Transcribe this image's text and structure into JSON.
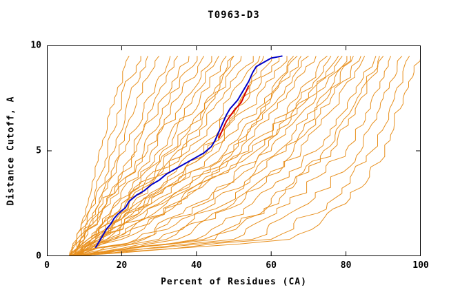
{
  "chart_data": {
    "type": "line",
    "title": "T0963-D3",
    "xlabel": "Percent of Residues (CA)",
    "ylabel": "Distance Cutoff, A",
    "xlim": [
      0,
      100
    ],
    "ylim": [
      0,
      10
    ],
    "x_tick_values": [
      0,
      20,
      40,
      60,
      80,
      100
    ],
    "x_tick_labels": [
      "0",
      "20",
      "40",
      "60",
      "80",
      "100"
    ],
    "y_tick_values": [
      0,
      5,
      10
    ],
    "y_tick_labels": [
      "0",
      "5",
      "10"
    ],
    "grid": false,
    "legend": null,
    "colors": {
      "orange": "#E8901E",
      "blue": "#0000C8",
      "red": "#D40000",
      "frame": "#000000"
    },
    "anchor_y": [
      0,
      0.8,
      2.5,
      5,
      7.5,
      9.5
    ],
    "orange_series": [
      [
        6,
        8,
        11,
        14,
        18,
        22
      ],
      [
        6,
        8,
        12,
        16,
        20,
        25
      ],
      [
        6,
        8,
        13,
        18,
        22,
        27
      ],
      [
        7,
        9,
        14,
        19,
        24,
        30
      ],
      [
        6,
        9,
        14,
        21,
        27,
        33
      ],
      [
        7,
        10,
        16,
        23,
        29,
        35
      ],
      [
        6,
        9,
        15,
        24,
        31,
        38
      ],
      [
        7,
        10,
        17,
        26,
        33,
        40
      ],
      [
        6,
        10,
        16,
        27,
        35,
        42
      ],
      [
        7,
        11,
        18,
        28,
        37,
        44
      ],
      [
        8,
        12,
        20,
        30,
        39,
        46
      ],
      [
        6,
        11,
        19,
        31,
        41,
        48
      ],
      [
        7,
        12,
        21,
        33,
        43,
        50
      ],
      [
        8,
        13,
        22,
        35,
        45,
        52
      ],
      [
        6,
        12,
        20,
        36,
        47,
        55
      ],
      [
        7,
        13,
        23,
        38,
        49,
        57
      ],
      [
        8,
        14,
        25,
        40,
        52,
        60
      ],
      [
        6,
        13,
        24,
        42,
        54,
        62
      ],
      [
        7,
        14,
        26,
        44,
        56,
        64
      ],
      [
        8,
        15,
        28,
        46,
        58,
        66
      ],
      [
        6,
        14,
        27,
        48,
        60,
        68
      ],
      [
        7,
        16,
        30,
        50,
        62,
        70
      ],
      [
        8,
        17,
        32,
        52,
        64,
        72
      ],
      [
        6,
        16,
        31,
        54,
        67,
        75
      ],
      [
        7,
        18,
        34,
        56,
        70,
        78
      ],
      [
        6,
        25,
        40,
        60,
        72,
        80
      ],
      [
        7,
        30,
        45,
        64,
        75,
        82
      ],
      [
        8,
        35,
        50,
        68,
        78,
        85
      ],
      [
        6,
        40,
        55,
        72,
        81,
        88
      ],
      [
        7,
        45,
        60,
        76,
        84,
        90
      ],
      [
        8,
        50,
        65,
        80,
        87,
        92
      ],
      [
        6,
        55,
        70,
        84,
        90,
        95
      ],
      [
        7,
        60,
        75,
        87,
        93,
        97
      ],
      [
        8,
        65,
        80,
        90,
        95,
        100
      ],
      [
        6,
        42,
        62,
        74,
        83,
        89
      ],
      [
        7,
        32,
        52,
        66,
        76,
        84
      ],
      [
        8,
        26,
        42,
        58,
        70,
        79
      ],
      [
        6,
        20,
        35,
        55,
        68,
        76
      ],
      [
        7,
        15,
        28,
        43,
        52,
        58
      ],
      [
        6,
        12,
        22,
        34,
        44,
        50
      ],
      [
        8,
        18,
        36,
        50,
        60,
        67
      ],
      [
        7,
        24,
        48,
        62,
        73,
        81
      ]
    ],
    "blue_series": [
      [
        13,
        0.4
      ],
      [
        14,
        0.7
      ],
      [
        15,
        1.0
      ],
      [
        16,
        1.3
      ],
      [
        17,
        1.5
      ],
      [
        18,
        1.8
      ],
      [
        19,
        2.0
      ],
      [
        21,
        2.3
      ],
      [
        22,
        2.6
      ],
      [
        24,
        2.9
      ],
      [
        26,
        3.1
      ],
      [
        28,
        3.4
      ],
      [
        30,
        3.6
      ],
      [
        32,
        3.9
      ],
      [
        34,
        4.1
      ],
      [
        37,
        4.4
      ],
      [
        40,
        4.7
      ],
      [
        42,
        4.9
      ],
      [
        44,
        5.2
      ],
      [
        45,
        5.5
      ],
      [
        46,
        5.9
      ],
      [
        47,
        6.3
      ],
      [
        48,
        6.7
      ],
      [
        49,
        7.0
      ],
      [
        51,
        7.4
      ],
      [
        52,
        7.7
      ],
      [
        53,
        8.0
      ],
      [
        54,
        8.3
      ],
      [
        55,
        8.7
      ],
      [
        56,
        9.0
      ],
      [
        58,
        9.2
      ],
      [
        60,
        9.4
      ],
      [
        63,
        9.5
      ]
    ],
    "red_series": [
      [
        46,
        5.6
      ],
      [
        47,
        6.0
      ],
      [
        48,
        6.4
      ],
      [
        50,
        6.9
      ],
      [
        52,
        7.3
      ],
      [
        53,
        7.7
      ],
      [
        54,
        8.1
      ]
    ]
  }
}
